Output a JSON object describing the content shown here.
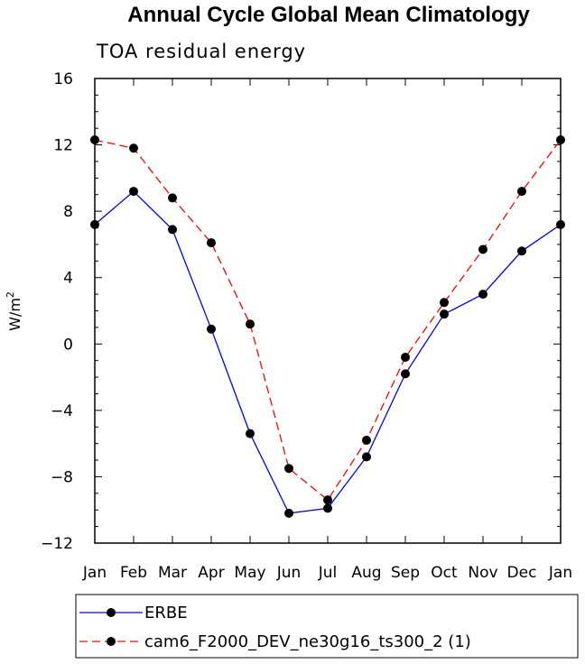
{
  "chart_data": {
    "type": "line",
    "title": "Annual Cycle Global Mean Climatology",
    "subtitle": "TOA residual energy",
    "xlabel": "",
    "ylabel": "W/m",
    "ylabel_superscript": "2",
    "ylim": [
      -12,
      16
    ],
    "yticks": [
      -12,
      -8,
      -4,
      0,
      4,
      8,
      12,
      16
    ],
    "ytick_labels": [
      "−12",
      "−8",
      "−4",
      "0",
      "4",
      "8",
      "12",
      "16"
    ],
    "categories": [
      "Jan",
      "Feb",
      "Mar",
      "Apr",
      "May",
      "Jun",
      "Jul",
      "Aug",
      "Sep",
      "Oct",
      "Nov",
      "Dec",
      "Jan"
    ],
    "series": [
      {
        "name": "ERBE",
        "color": "#0000ff",
        "dash": "solid",
        "values": [
          7.2,
          9.2,
          6.9,
          0.9,
          -5.4,
          -10.2,
          -9.9,
          -6.8,
          -1.8,
          1.8,
          3.0,
          5.6,
          7.2
        ]
      },
      {
        "name": "cam6_F2000_DEV_ne30g16_ts300_2 (1)",
        "color": "#ff0000",
        "dash": "dashed",
        "values": [
          12.3,
          11.8,
          8.8,
          6.1,
          1.2,
          -7.5,
          -9.4,
          -5.8,
          -0.8,
          2.5,
          5.7,
          9.2,
          12.3
        ]
      }
    ],
    "legend_position": "bottom"
  }
}
